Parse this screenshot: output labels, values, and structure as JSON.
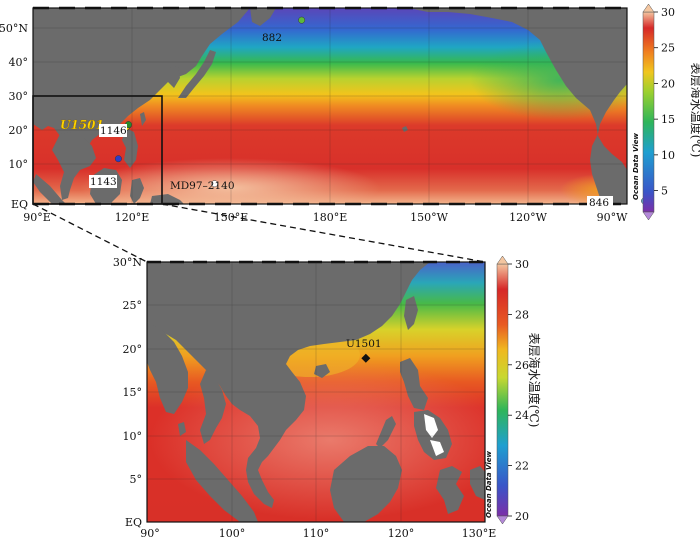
{
  "top_map": {
    "lon_labels": [
      "90°E",
      "120°E",
      "150°E",
      "180°E",
      "150°W",
      "120°W",
      "90°W"
    ],
    "lat_labels": [
      "EQ",
      "10°",
      "20°",
      "30°",
      "40°",
      "50°N"
    ],
    "sites": [
      {
        "label": "882",
        "color": "#5cb83c",
        "lon": 167.6,
        "lat": 50.4
      },
      {
        "label": "U1501",
        "color": "#ffd400",
        "lon": 115.9,
        "lat": 18.9
      },
      {
        "label": "1146",
        "color": "#2a8c2a",
        "lon": 116.3,
        "lat": 19.5
      },
      {
        "label": "1143",
        "color": "#2b3cc8",
        "lon": 113.3,
        "lat": 9.4
      },
      {
        "label": "MD97–2140",
        "color": "#ffffff",
        "lon": 141.8,
        "lat": 2.0
      },
      {
        "label": "846",
        "color": "#66b0d8",
        "lon": -90.8,
        "lat": -3.1
      }
    ],
    "colorbar": {
      "title": "表层海水温度(℃)",
      "min": 2,
      "max": 30,
      "ticks": [
        "5",
        "10",
        "15",
        "20",
        "25",
        "30"
      ]
    },
    "watermark": "Ocean Data View"
  },
  "inset_map": {
    "lon_labels": [
      "90°",
      "100°",
      "110°",
      "120°",
      "130°E"
    ],
    "lat_labels": [
      "EQ",
      "5°",
      "10°",
      "15°",
      "20°",
      "25°",
      "30°N"
    ],
    "sites": [
      {
        "label": "U1501",
        "color": "#111111",
        "lon": 115.9,
        "lat": 18.9
      }
    ],
    "colorbar": {
      "title": "表层海水温度(℃)",
      "min": 20,
      "max": 30,
      "ticks": [
        "20",
        "22",
        "24",
        "26",
        "28",
        "30"
      ]
    },
    "watermark": "Ocean Data View"
  }
}
